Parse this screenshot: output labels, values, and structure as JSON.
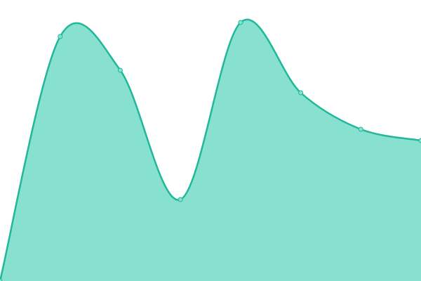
{
  "chart_data": {
    "type": "area",
    "categories": [
      null,
      null,
      null,
      null,
      null,
      null,
      null,
      null
    ],
    "values": [
      0,
      87,
      75,
      29,
      92,
      67,
      54,
      50
    ],
    "ylim": [
      0,
      100
    ],
    "color": "#1fb89a",
    "fill": "#88e0cf",
    "smooth": true,
    "markers": true
  }
}
